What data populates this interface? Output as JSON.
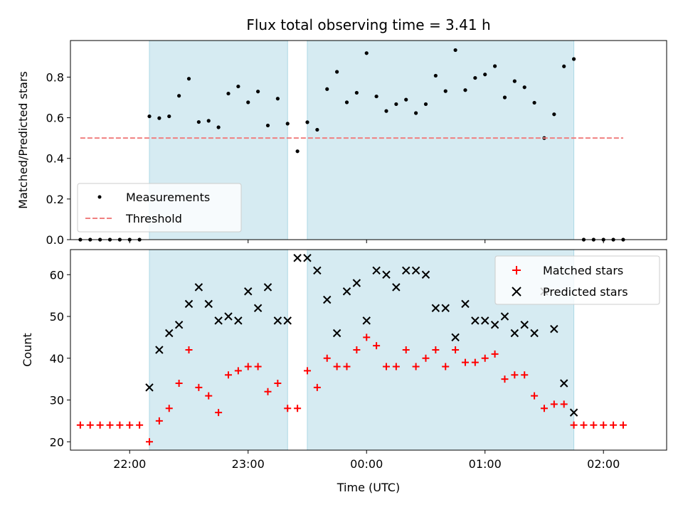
{
  "chart_data": [
    {
      "type": "scatter",
      "title": "Flux total observing time = 3.41 h",
      "ylabel": "Matched/Predicted stars",
      "xlabel": "",
      "xlim": [
        "21:30",
        "02:32"
      ],
      "ylim": [
        0,
        0.98
      ],
      "yticks": [
        0.0,
        0.2,
        0.4,
        0.6,
        0.8
      ],
      "ytick_labels": [
        "0.0",
        "0.2",
        "0.4",
        "0.6",
        "0.8"
      ],
      "shaded_spans": [
        [
          "22:10",
          "23:20"
        ],
        [
          "23:30",
          "01:45"
        ]
      ],
      "shade_color": "#add8e6",
      "legend_position": "lower left",
      "series": [
        {
          "name": "Measurements",
          "marker": "dot",
          "color": "#000000",
          "x": [
            "21:35",
            "21:40",
            "21:45",
            "21:50",
            "21:55",
            "22:00",
            "22:05",
            "22:10",
            "22:15",
            "22:20",
            "22:25",
            "22:30",
            "22:35",
            "22:40",
            "22:45",
            "22:50",
            "22:55",
            "23:00",
            "23:05",
            "23:10",
            "23:15",
            "23:20",
            "23:25",
            "23:30",
            "23:35",
            "23:40",
            "23:45",
            "23:50",
            "23:55",
            "00:00",
            "00:05",
            "00:10",
            "00:15",
            "00:20",
            "00:25",
            "00:30",
            "00:35",
            "00:40",
            "00:45",
            "00:50",
            "00:55",
            "01:00",
            "01:05",
            "01:10",
            "01:15",
            "01:20",
            "01:25",
            "01:30",
            "01:35",
            "01:40",
            "01:45",
            "01:50",
            "01:55",
            "02:00",
            "02:05",
            "02:10"
          ],
          "y": [
            0,
            0,
            0,
            0,
            0,
            0,
            0,
            0.607,
            0.598,
            0.607,
            0.708,
            0.792,
            0.579,
            0.585,
            0.553,
            0.719,
            0.754,
            0.676,
            0.729,
            0.562,
            0.694,
            0.571,
            0.435,
            0.578,
            0.541,
            0.741,
            0.826,
            0.676,
            0.723,
            0.918,
            0.705,
            0.633,
            0.667,
            0.689,
            0.623,
            0.667,
            0.807,
            0.731,
            0.933,
            0.736,
            0.796,
            0.813,
            0.854,
            0.7,
            0.78,
            0.75,
            0.674,
            0.5,
            0.617,
            0.853,
            0.889,
            0,
            0,
            0,
            0,
            0
          ]
        },
        {
          "name": "Threshold",
          "marker": "dashed-line",
          "color": "#f08080",
          "x": [
            "21:35",
            "02:10"
          ],
          "y": [
            0.5,
            0.5
          ]
        }
      ]
    },
    {
      "type": "scatter",
      "title": "",
      "ylabel": "Count",
      "xlabel": "Time (UTC)",
      "xlim": [
        "21:30",
        "02:32"
      ],
      "ylim": [
        18,
        66
      ],
      "yticks": [
        20,
        30,
        40,
        50,
        60
      ],
      "ytick_labels": [
        "20",
        "30",
        "40",
        "50",
        "60"
      ],
      "xticks": [
        "22:00",
        "23:00",
        "00:00",
        "01:00",
        "02:00"
      ],
      "xtick_labels": [
        "22:00",
        "23:00",
        "00:00",
        "01:00",
        "02:00"
      ],
      "shaded_spans": [
        [
          "22:10",
          "23:20"
        ],
        [
          "23:30",
          "01:45"
        ]
      ],
      "shade_color": "#add8e6",
      "legend_position": "upper right",
      "series": [
        {
          "name": "Matched stars",
          "marker": "plus",
          "color": "#ff0000",
          "x": [
            "21:35",
            "21:40",
            "21:45",
            "21:50",
            "21:55",
            "22:00",
            "22:05",
            "22:10",
            "22:15",
            "22:20",
            "22:25",
            "22:30",
            "22:35",
            "22:40",
            "22:45",
            "22:50",
            "22:55",
            "23:00",
            "23:05",
            "23:10",
            "23:15",
            "23:20",
            "23:25",
            "23:30",
            "23:35",
            "23:40",
            "23:45",
            "23:50",
            "23:55",
            "00:00",
            "00:05",
            "00:10",
            "00:15",
            "00:20",
            "00:25",
            "00:30",
            "00:35",
            "00:40",
            "00:45",
            "00:50",
            "00:55",
            "01:00",
            "01:05",
            "01:10",
            "01:15",
            "01:20",
            "01:25",
            "01:30",
            "01:35",
            "01:40",
            "01:45",
            "01:50",
            "01:55",
            "02:00",
            "02:05",
            "02:10"
          ],
          "y": [
            24,
            24,
            24,
            24,
            24,
            24,
            24,
            20,
            25,
            28,
            34,
            42,
            33,
            31,
            27,
            36,
            37,
            38,
            38,
            32,
            34,
            28,
            28,
            37,
            33,
            40,
            38,
            38,
            42,
            45,
            43,
            38,
            38,
            42,
            38,
            40,
            42,
            38,
            42,
            39,
            39,
            40,
            41,
            35,
            36,
            36,
            31,
            28,
            29,
            29,
            24,
            24,
            24,
            24,
            24,
            24
          ]
        },
        {
          "name": "Predicted stars",
          "marker": "x",
          "color": "#000000",
          "x": [
            "22:10",
            "22:15",
            "22:20",
            "22:25",
            "22:30",
            "22:35",
            "22:40",
            "22:45",
            "22:50",
            "22:55",
            "23:00",
            "23:05",
            "23:10",
            "23:15",
            "23:20",
            "23:25",
            "23:30",
            "23:35",
            "23:40",
            "23:45",
            "23:50",
            "23:55",
            "00:00",
            "00:05",
            "00:10",
            "00:15",
            "00:20",
            "00:25",
            "00:30",
            "00:35",
            "00:40",
            "00:45",
            "00:50",
            "00:55",
            "01:00",
            "01:05",
            "01:10",
            "01:15",
            "01:20",
            "01:25",
            "01:30",
            "01:35",
            "01:40",
            "01:45"
          ],
          "y": [
            33,
            42,
            46,
            48,
            53,
            57,
            53,
            49,
            50,
            49,
            56,
            52,
            57,
            49,
            49,
            64,
            64,
            61,
            54,
            46,
            56,
            58,
            49,
            61,
            60,
            57,
            61,
            61,
            60,
            52,
            52,
            45,
            53,
            49,
            49,
            48,
            50,
            46,
            48,
            46,
            56,
            47,
            34,
            27
          ]
        }
      ]
    }
  ]
}
